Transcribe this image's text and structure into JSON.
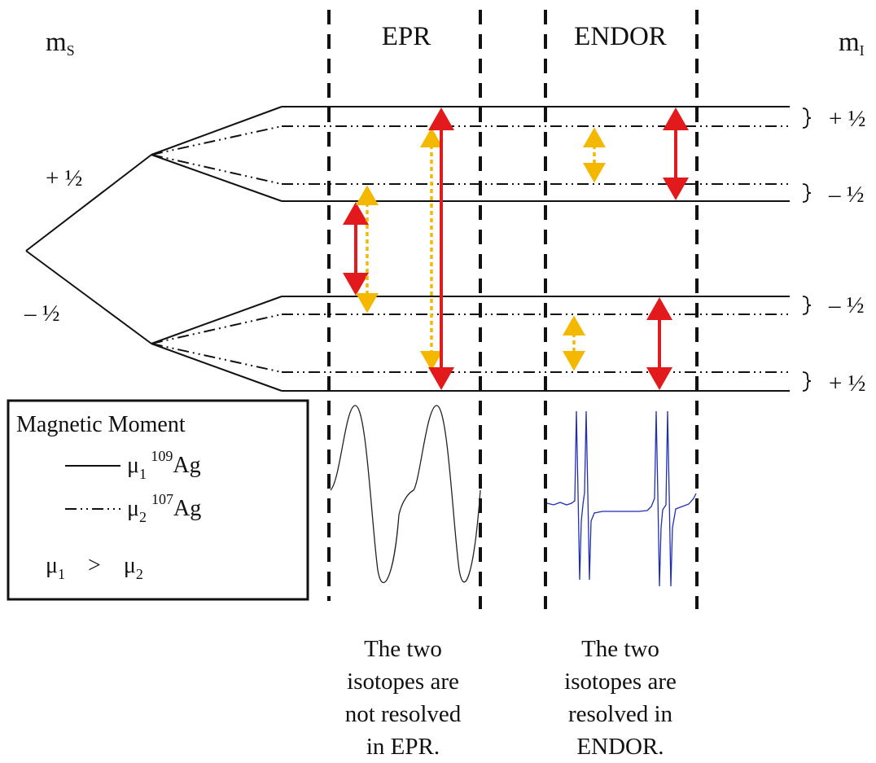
{
  "headers": {
    "ms_main": "m",
    "ms_sub": "S",
    "epr": "EPR",
    "endor": "ENDOR",
    "mi_main": "m",
    "mi_sub": "I"
  },
  "ms_values": {
    "plus": "+ ½",
    "minus": "– ½"
  },
  "mi_values": [
    "+ ½",
    "– ½",
    "– ½",
    "+ ½"
  ],
  "legend": {
    "title": "Magnetic Moment",
    "line1_mu": "μ",
    "line1_sub": "1",
    "line1_sup": "109",
    "line1_el": "Ag",
    "line2_mu": "μ",
    "line2_sub": "2",
    "line2_sup": "107",
    "line2_el": "Ag",
    "cmp_left": "μ",
    "cmp_left_sub": "1",
    "cmp_op": ">",
    "cmp_right": "μ",
    "cmp_right_sub": "2"
  },
  "captions": {
    "epr": [
      "The two",
      "isotopes are",
      "not resolved",
      "in EPR."
    ],
    "endor": [
      "The two",
      "isotopes are",
      "resolved in",
      "ENDOR."
    ]
  },
  "colors": {
    "isotope_109_arrow": "#e31a1c",
    "isotope_107_arrow": "#f5b800",
    "endor_trace": "#1f2fb0",
    "epr_trace": "#222222"
  }
}
